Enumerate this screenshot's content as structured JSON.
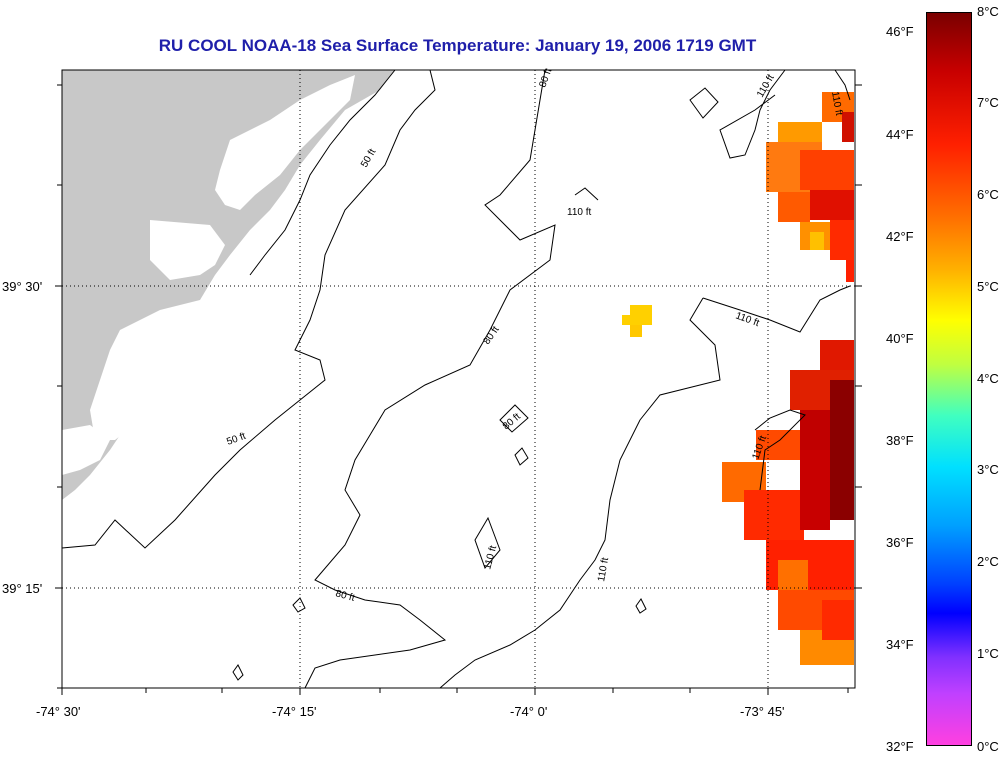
{
  "title": "RU COOL  NOAA-18  Sea Surface Temperature:  January 19, 2006 1719 GMT",
  "axes": {
    "x_labels": [
      "-74° 30'",
      "-74° 15'",
      "-74° 0'",
      "-73° 45'"
    ],
    "y_labels": [
      "39° 30'",
      "39° 15'"
    ]
  },
  "contours": {
    "labels": [
      "50 ft",
      "50 ft",
      "80 ft",
      "80 ft",
      "80 ft",
      "80 ft",
      "110 ft",
      "110 ft",
      "110 ft",
      "110 ft",
      "110 ft",
      "110 ft"
    ]
  },
  "colorbar": {
    "fahrenheit": [
      "46°F",
      "44°F",
      "42°F",
      "40°F",
      "38°F",
      "36°F",
      "34°F",
      "32°F"
    ],
    "celsius": [
      "8°C",
      "7°C",
      "6°C",
      "5°C",
      "4°C",
      "3°C",
      "2°C",
      "1°C",
      "0°C"
    ]
  },
  "colors": {
    "land": "#c8c8c8",
    "title": "#1f1faa",
    "sst_warm": "#8b0000",
    "sst_mid": "#ff2000",
    "sst_cool": "#ffa500",
    "sst_yellow": "#ffd000"
  }
}
